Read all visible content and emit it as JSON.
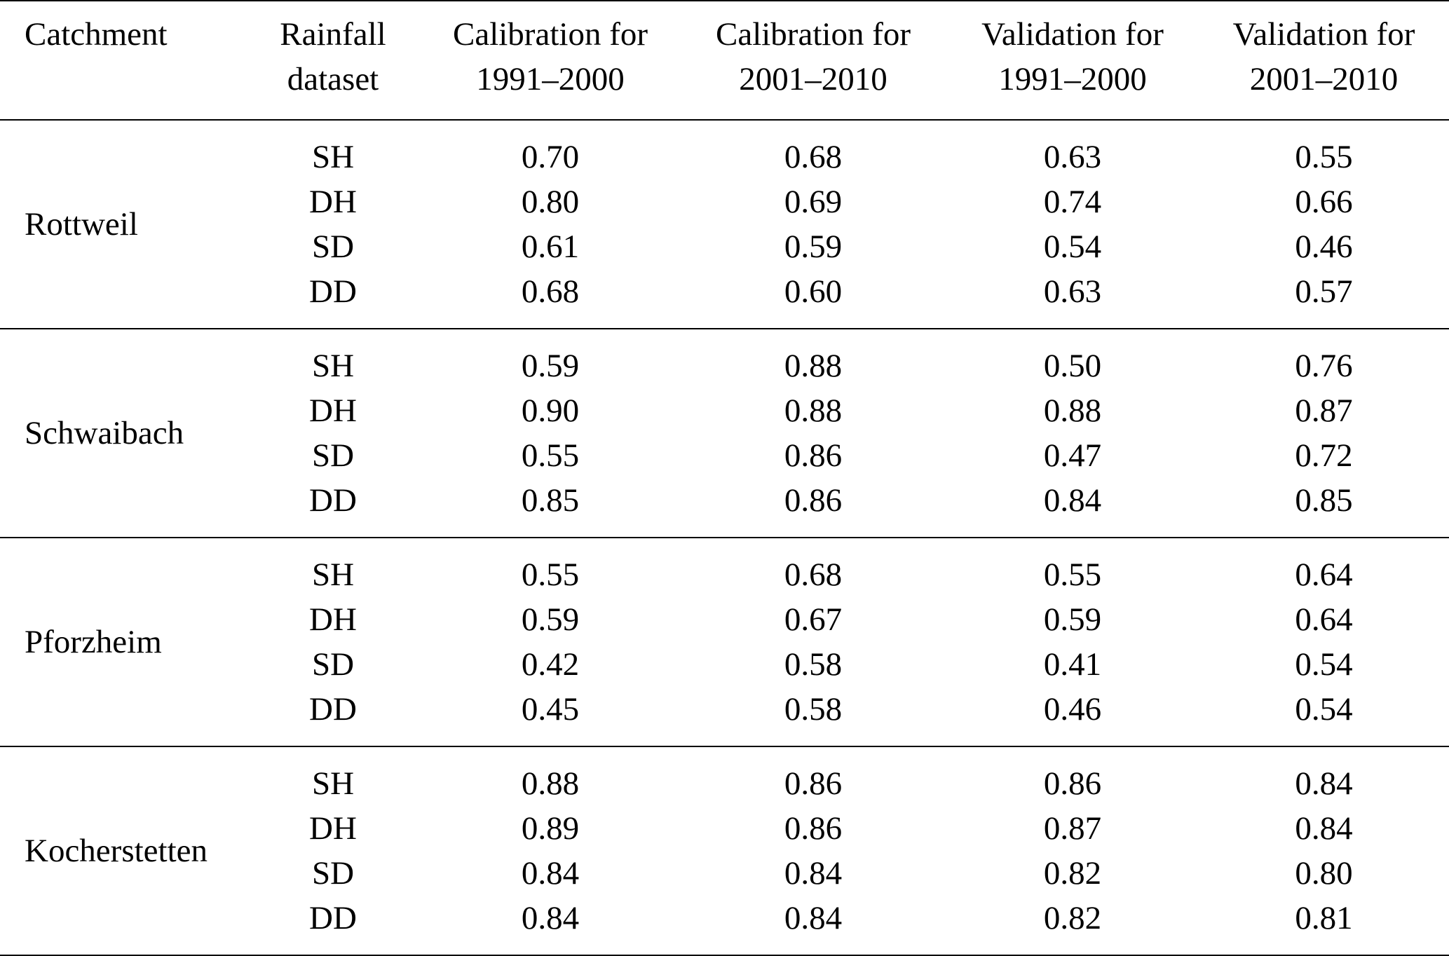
{
  "table": {
    "headers": [
      {
        "line1": "Catchment",
        "line2": ""
      },
      {
        "line1": "Rainfall",
        "line2": "dataset"
      },
      {
        "line1": "Calibration for",
        "line2": "1991–2000"
      },
      {
        "line1": "Calibration for",
        "line2": "2001–2010"
      },
      {
        "line1": "Validation for",
        "line2": "1991–2000"
      },
      {
        "line1": "Validation for",
        "line2": "2001–2010"
      }
    ],
    "groups": [
      {
        "catchment": "Rottweil",
        "rows": [
          {
            "dataset": "SH",
            "values": [
              "0.70",
              "0.68",
              "0.63",
              "0.55"
            ]
          },
          {
            "dataset": "DH",
            "values": [
              "0.80",
              "0.69",
              "0.74",
              "0.66"
            ]
          },
          {
            "dataset": "SD",
            "values": [
              "0.61",
              "0.59",
              "0.54",
              "0.46"
            ]
          },
          {
            "dataset": "DD",
            "values": [
              "0.68",
              "0.60",
              "0.63",
              "0.57"
            ]
          }
        ]
      },
      {
        "catchment": "Schwaibach",
        "rows": [
          {
            "dataset": "SH",
            "values": [
              "0.59",
              "0.88",
              "0.50",
              "0.76"
            ]
          },
          {
            "dataset": "DH",
            "values": [
              "0.90",
              "0.88",
              "0.88",
              "0.87"
            ]
          },
          {
            "dataset": "SD",
            "values": [
              "0.55",
              "0.86",
              "0.47",
              "0.72"
            ]
          },
          {
            "dataset": "DD",
            "values": [
              "0.85",
              "0.86",
              "0.84",
              "0.85"
            ]
          }
        ]
      },
      {
        "catchment": "Pforzheim",
        "rows": [
          {
            "dataset": "SH",
            "values": [
              "0.55",
              "0.68",
              "0.55",
              "0.64"
            ]
          },
          {
            "dataset": "DH",
            "values": [
              "0.59",
              "0.67",
              "0.59",
              "0.64"
            ]
          },
          {
            "dataset": "SD",
            "values": [
              "0.42",
              "0.58",
              "0.41",
              "0.54"
            ]
          },
          {
            "dataset": "DD",
            "values": [
              "0.45",
              "0.58",
              "0.46",
              "0.54"
            ]
          }
        ]
      },
      {
        "catchment": "Kocherstetten",
        "rows": [
          {
            "dataset": "SH",
            "values": [
              "0.88",
              "0.86",
              "0.86",
              "0.84"
            ]
          },
          {
            "dataset": "DH",
            "values": [
              "0.89",
              "0.86",
              "0.87",
              "0.84"
            ]
          },
          {
            "dataset": "SD",
            "values": [
              "0.84",
              "0.84",
              "0.82",
              "0.80"
            ]
          },
          {
            "dataset": "DD",
            "values": [
              "0.84",
              "0.84",
              "0.82",
              "0.81"
            ]
          }
        ]
      }
    ]
  }
}
